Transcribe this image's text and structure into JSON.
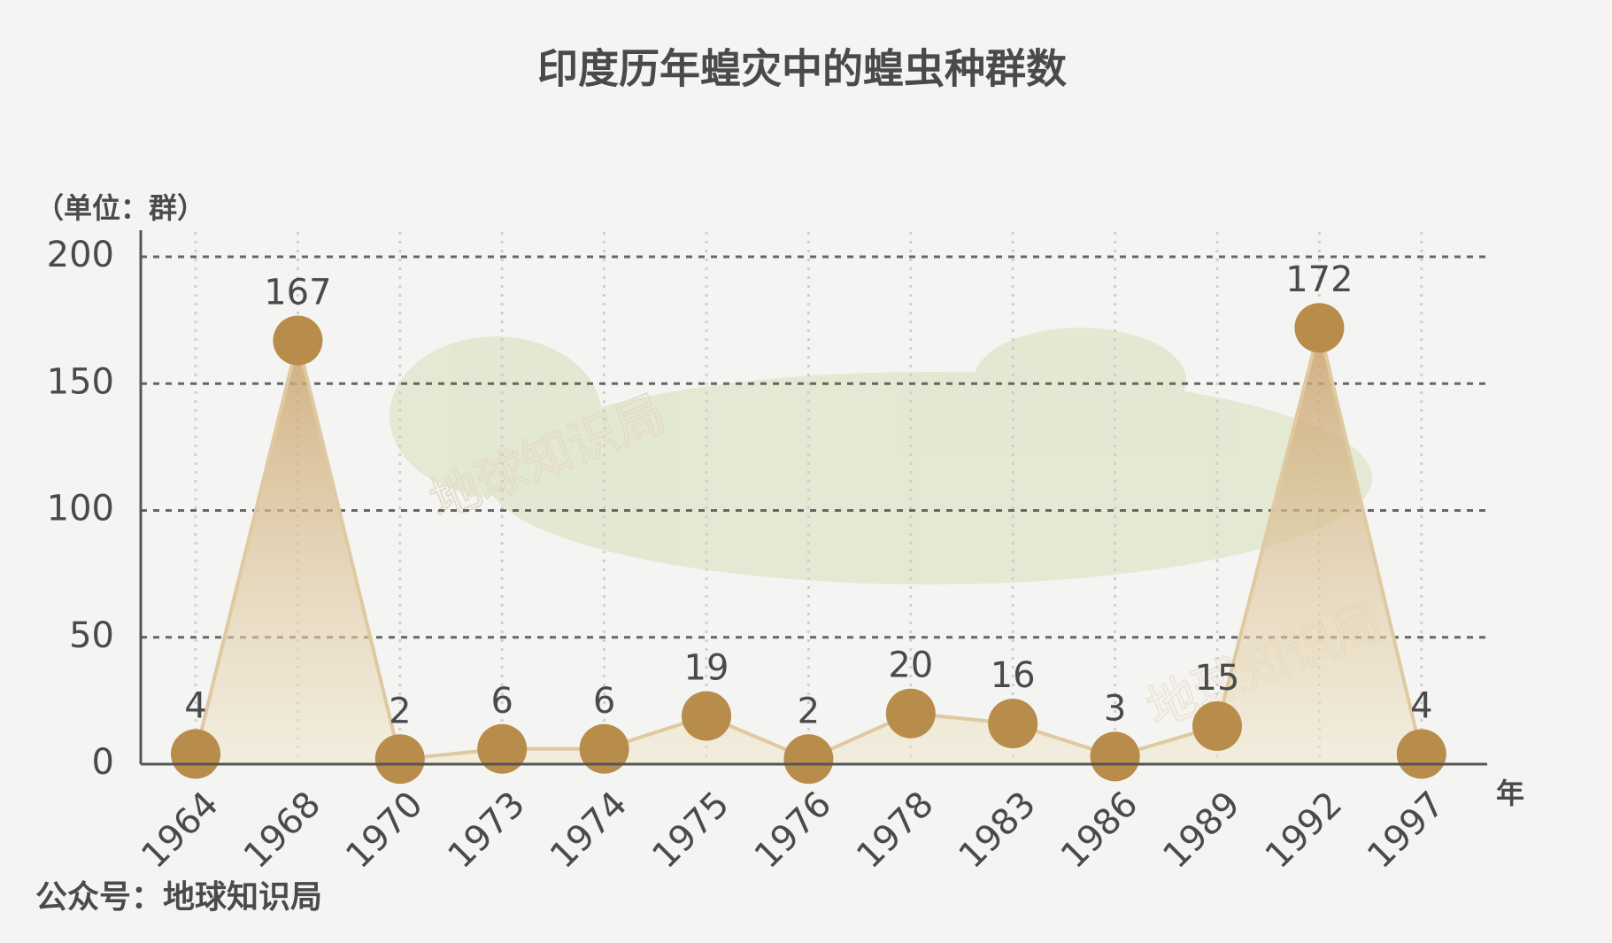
{
  "chart_data": {
    "type": "area",
    "title": "印度历年蝗灾中的蝗虫种群数",
    "y_label": "（单位：群）",
    "x_label": "年",
    "source": "公众号：地球知识局",
    "watermark": "地球知识局",
    "categories": [
      "1964",
      "1968",
      "1970",
      "1973",
      "1974",
      "1975",
      "1976",
      "1978",
      "1983",
      "1986",
      "1989",
      "1992",
      "1997"
    ],
    "values": [
      4,
      167,
      2,
      6,
      6,
      19,
      2,
      20,
      16,
      3,
      15,
      172,
      4
    ],
    "color": "#b88c4a",
    "ylim": [
      0,
      200
    ],
    "yticks": [
      0,
      50,
      100,
      150,
      200
    ],
    "grid": true
  }
}
